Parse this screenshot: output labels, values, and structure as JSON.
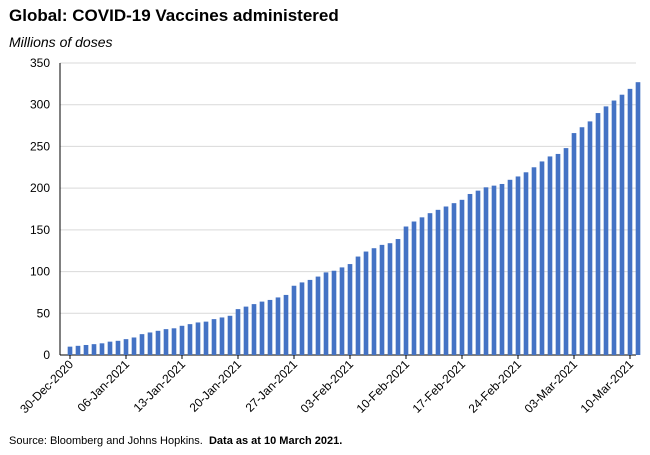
{
  "chart_data": {
    "type": "bar",
    "title": "Global: COVID-19 Vaccines administered",
    "subtitle": "Millions of doses",
    "ylabel": "",
    "xlabel": "",
    "ylim": [
      0,
      350
    ],
    "yticks": [
      0,
      50,
      100,
      150,
      200,
      250,
      300,
      350
    ],
    "grid": true,
    "bar_color": "#4472C4",
    "start_date": "2020-12-30",
    "xtick_labels": [
      "30-Dec-2020",
      "06-Jan-2021",
      "13-Jan-2021",
      "20-Jan-2021",
      "27-Jan-2021",
      "03-Feb-2021",
      "10-Feb-2021",
      "17-Feb-2021",
      "24-Feb-2021",
      "03-Mar-2021",
      "10-Mar-2021"
    ],
    "values": [
      10,
      11,
      12,
      13,
      14,
      16,
      17,
      19,
      21,
      25,
      27,
      29,
      31,
      32,
      35,
      37,
      39,
      40,
      43,
      45,
      47,
      55,
      58,
      61,
      64,
      66,
      69,
      72,
      83,
      87,
      90,
      94,
      99,
      101,
      105,
      109,
      118,
      124,
      128,
      132,
      134,
      139,
      154,
      160,
      165,
      170,
      174,
      178,
      182,
      186,
      193,
      197,
      201,
      203,
      205,
      210,
      214,
      219,
      225,
      232,
      238,
      241,
      248,
      266,
      273,
      280,
      290,
      298,
      305,
      312,
      319,
      327
    ]
  },
  "footer": {
    "source": "Source: Bloomberg and Johns Hopkins.",
    "date_note": "Data as at 10 March 2021."
  }
}
